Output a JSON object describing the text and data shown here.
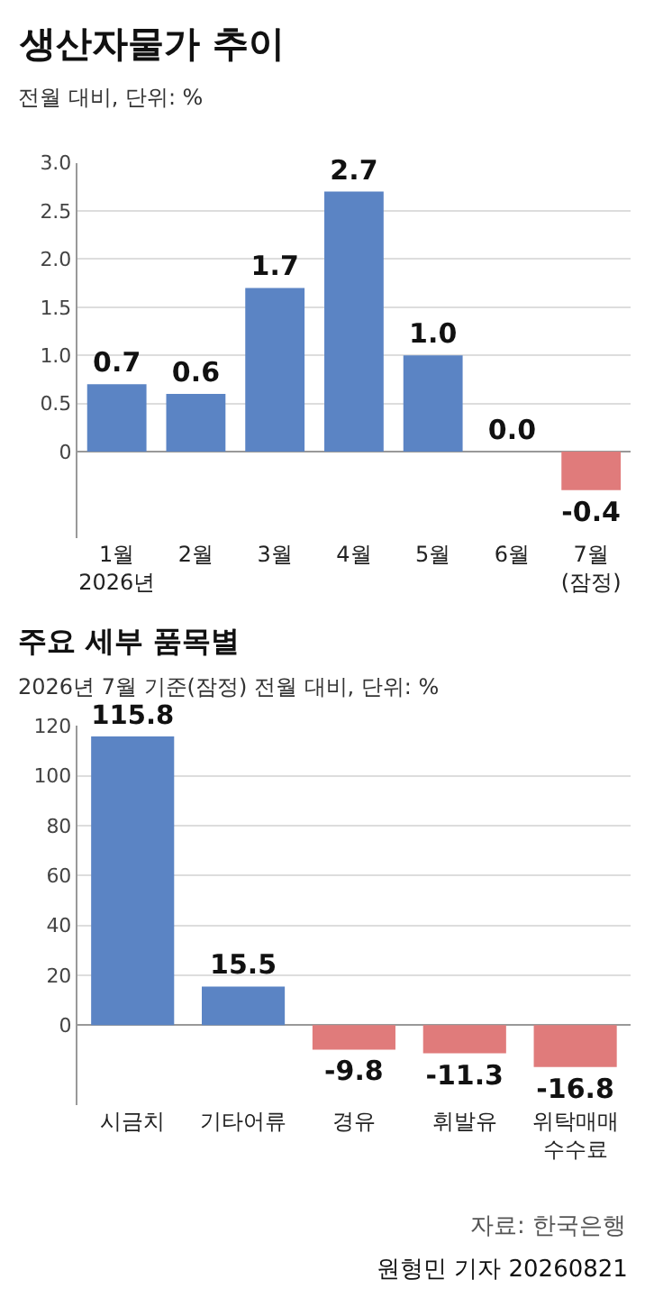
{
  "chart_data": [
    {
      "type": "bar",
      "title": "생산자물가 추이",
      "subtitle": "전월 대비, 단위: %",
      "categories": [
        "1월\n2026년",
        "2월",
        "3월",
        "4월",
        "5월",
        "6월",
        "7월\n(잠정)"
      ],
      "values": [
        0.7,
        0.6,
        1.7,
        2.7,
        1.0,
        0.0,
        -0.4
      ],
      "colors": [
        "#5b84c4",
        "#5b84c4",
        "#5b84c4",
        "#5b84c4",
        "#5b84c4",
        "#5b84c4",
        "#e07b7b"
      ],
      "ylim": [
        -0.9,
        3.0
      ],
      "yticks": [
        {
          "value": 0,
          "label": "0"
        },
        {
          "value": 0.5,
          "label": "0.5"
        },
        {
          "value": 1,
          "label": "1.0"
        },
        {
          "value": 1.5,
          "label": "1.5"
        },
        {
          "value": 2,
          "label": "2.0"
        },
        {
          "value": 2.5,
          "label": "2.5"
        },
        {
          "value": 3,
          "label": "3.0"
        }
      ],
      "grid": "y",
      "value_labels": [
        "0.7",
        "0.6",
        "1.7",
        "2.7",
        "1.0",
        "0.0",
        "-0.4"
      ]
    },
    {
      "type": "bar",
      "title": "주요 세부 품목별",
      "subtitle": "2026년 7월 기준(잠정) 전월 대비, 단위: %",
      "categories": [
        "시금치",
        "기타어류",
        "경유",
        "휘발유",
        "위탁매매\n수수료"
      ],
      "values": [
        115.8,
        15.5,
        -9.8,
        -11.3,
        -16.8
      ],
      "colors": [
        "#5b84c4",
        "#5b84c4",
        "#e07b7b",
        "#e07b7b",
        "#e07b7b"
      ],
      "ylim": [
        -32,
        120
      ],
      "yticks": [
        0,
        20,
        40,
        60,
        80,
        100,
        120
      ],
      "grid": "y",
      "data_labels": true,
      "annotations": [
        "자료: 한국은행",
        "원형민 기자 20260821"
      ]
    }
  ]
}
